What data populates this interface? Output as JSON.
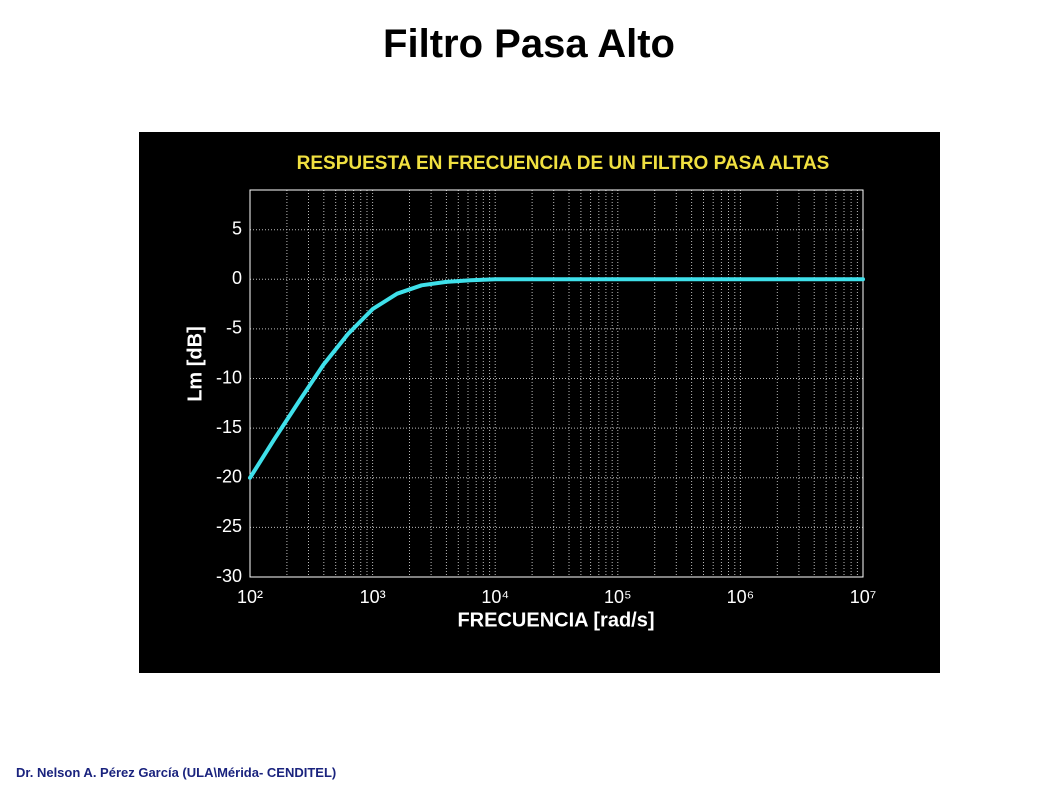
{
  "slide_title": "Filtro Pasa Alto",
  "footer": "Dr. Nelson A. Pérez García (ULA\\Mérida- CENDITEL)",
  "chart_data": {
    "type": "line",
    "title": "RESPUESTA EN FRECUENCIA DE UN FILTRO PASA ALTAS",
    "x_label": "FRECUENCIA [rad/s]",
    "y_label": "Lm [dB]",
    "x": [
      100,
      158,
      251,
      398,
      631,
      1000,
      1585,
      2512,
      3981,
      6310,
      10000,
      100000,
      1000000,
      10000000
    ],
    "series": [
      {
        "name": "Lm",
        "color": "#3fe0ea",
        "values": [
          -20,
          -16.1,
          -12.3,
          -8.6,
          -5.5,
          -3,
          -1.45,
          -0.6,
          -0.26,
          -0.1,
          0,
          0,
          0,
          0
        ]
      }
    ],
    "x_scale": "log",
    "xlim": [
      100,
      10000000
    ],
    "xticks": [
      {
        "value": 100,
        "label": "10²"
      },
      {
        "value": 1000,
        "label": "10³"
      },
      {
        "value": 10000,
        "label": "10⁴"
      },
      {
        "value": 100000,
        "label": "10⁵"
      },
      {
        "value": 1000000,
        "label": "10⁶"
      },
      {
        "value": 10000000,
        "label": "10⁷"
      }
    ],
    "ylim": [
      -30,
      9
    ],
    "yticks": [
      -30,
      -25,
      -20,
      -15,
      -10,
      -5,
      0,
      5
    ],
    "grid": true,
    "minor_grid": true
  }
}
